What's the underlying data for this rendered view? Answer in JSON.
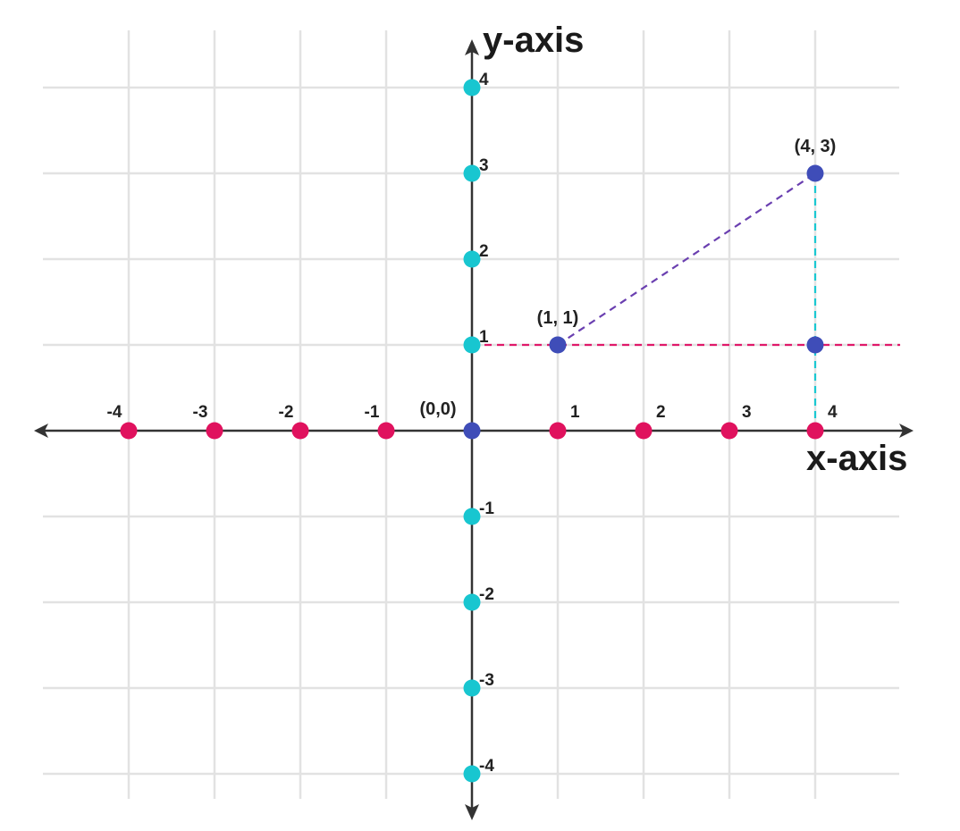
{
  "chart_data": {
    "type": "scatter",
    "title": "",
    "xlabel": "x-axis",
    "ylabel": "y-axis",
    "xlim": [
      -4,
      4
    ],
    "ylim": [
      -4,
      4
    ],
    "grid": true,
    "x_tick_labels": [
      {
        "value": -4,
        "text": "-4"
      },
      {
        "value": -3,
        "text": "-3"
      },
      {
        "value": -2,
        "text": "-2"
      },
      {
        "value": -1,
        "text": "-1"
      },
      {
        "value": 1,
        "text": "1"
      },
      {
        "value": 2,
        "text": "2"
      },
      {
        "value": 3,
        "text": "3"
      },
      {
        "value": 4,
        "text": "4"
      }
    ],
    "y_tick_labels": [
      {
        "value": 4,
        "text": "4"
      },
      {
        "value": 3,
        "text": "3"
      },
      {
        "value": 2,
        "text": "2"
      },
      {
        "value": 1,
        "text": "1"
      },
      {
        "value": -1,
        "text": "-1"
      },
      {
        "value": -2,
        "text": "-2"
      },
      {
        "value": -3,
        "text": "-3"
      },
      {
        "value": -4,
        "text": "-4"
      }
    ],
    "x_axis_points": [
      -4,
      -3,
      -2,
      -1,
      1,
      2,
      3,
      4
    ],
    "y_axis_points": [
      4,
      3,
      2,
      1,
      -1,
      -2,
      -3,
      -4
    ],
    "highlighted_points": [
      {
        "x": 0,
        "y": 0,
        "label": "(0,0)"
      },
      {
        "x": 1,
        "y": 1,
        "label": "(1, 1)"
      },
      {
        "x": 4,
        "y": 3,
        "label": "(4, 3)"
      },
      {
        "x": 4,
        "y": 1,
        "label": ""
      }
    ],
    "dashed_segments": [
      {
        "from": [
          1,
          1
        ],
        "to": [
          4,
          3
        ],
        "color": "#6a3fb0"
      },
      {
        "from": [
          0,
          1
        ],
        "to": [
          4.99,
          1
        ],
        "color": "#e0196a"
      },
      {
        "from": [
          4,
          3
        ],
        "to": [
          4,
          0
        ],
        "color": "#1ac8d2"
      }
    ],
    "colors": {
      "x_axis_points": "#e0125e",
      "y_axis_points": "#18c6d0",
      "highlighted_points": "#3f4db8",
      "grid": "#e2e2e2",
      "axis": "#333333"
    }
  }
}
